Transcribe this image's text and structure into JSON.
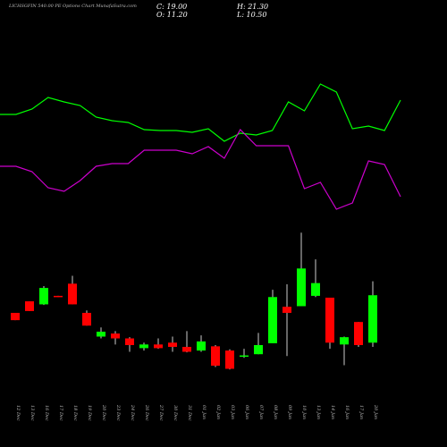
{
  "chart_data": {
    "type": "candlestick",
    "title": "LICHSGFIN 540.00 PE Options Chart MunafaSutra.com",
    "info": [
      "C: 19.00",
      "H: 21.30",
      "O: 11.20",
      "L: 10.50"
    ],
    "categories": [
      "12 Dec",
      "13 Dec",
      "16 Dec",
      "17 Dec",
      "18 Dec",
      "19 Dec",
      "20 Dec",
      "23 Dec",
      "24 Dec",
      "26 Dec",
      "27 Dec",
      "30 Dec",
      "31 Dec",
      "01 Jan",
      "02 Jan",
      "03 Jan",
      "06 Jan",
      "07 Jan",
      "08 Jan",
      "09 Jan",
      "10 Jan",
      "13 Jan",
      "14 Jan",
      "16 Jan",
      "17 Jan",
      "20 Jan"
    ],
    "open": [
      16.1,
      18.0,
      17.5,
      18.9,
      20.9,
      16.1,
      12.2,
      12.7,
      11.9,
      10.3,
      10.9,
      11.2,
      10.5,
      9.9,
      10.6,
      9.9,
      8.9,
      9.3,
      11.1,
      17.1,
      17.2,
      18.9,
      18.6,
      10.9,
      14.6,
      11.2
    ],
    "high": [
      16.1,
      18.0,
      20.5,
      18.9,
      22.2,
      16.5,
      13.7,
      13.1,
      12.1,
      11.2,
      11.9,
      12.2,
      13.1,
      12.4,
      10.8,
      10.1,
      10.2,
      12.8,
      19.9,
      20.8,
      29.3,
      24.9,
      18.6,
      12.2,
      14.6,
      21.3
    ],
    "low": [
      14.9,
      16.4,
      17.4,
      18.7,
      17.5,
      14.0,
      11.9,
      10.9,
      9.7,
      9.9,
      10.2,
      9.7,
      9.6,
      9.7,
      7.2,
      6.8,
      8.7,
      9.3,
      11.1,
      9.0,
      17.2,
      18.7,
      10.2,
      7.5,
      10.5,
      10.5
    ],
    "close": [
      14.9,
      16.4,
      20.2,
      18.7,
      17.5,
      14.0,
      13.0,
      11.9,
      10.8,
      10.9,
      10.3,
      10.5,
      9.7,
      11.4,
      7.4,
      6.9,
      9.1,
      10.8,
      18.7,
      16.1,
      23.4,
      21.0,
      11.2,
      12.1,
      10.8,
      19.0
    ],
    "ylim": [
      5.8,
      30.8
    ],
    "up_color": "#00ff00",
    "down_color": "#ff0000",
    "indicators": {
      "ylim": [
        0,
        200
      ],
      "series": [
        {
          "color": "#00ff00",
          "values": [
            122,
            122,
            128,
            141,
            136,
            132,
            119,
            115,
            113,
            105,
            104,
            104,
            102,
            106,
            92,
            101,
            99,
            104,
            136,
            126,
            156,
            147,
            106,
            109,
            104,
            138
          ]
        },
        {
          "color": "#cc00cc",
          "values": [
            64,
            64,
            58,
            40,
            36,
            48,
            64,
            67,
            67,
            82,
            82,
            82,
            78,
            86,
            73,
            105,
            87,
            87,
            87,
            39,
            46,
            16,
            23,
            70,
            66,
            30
          ]
        }
      ]
    }
  }
}
